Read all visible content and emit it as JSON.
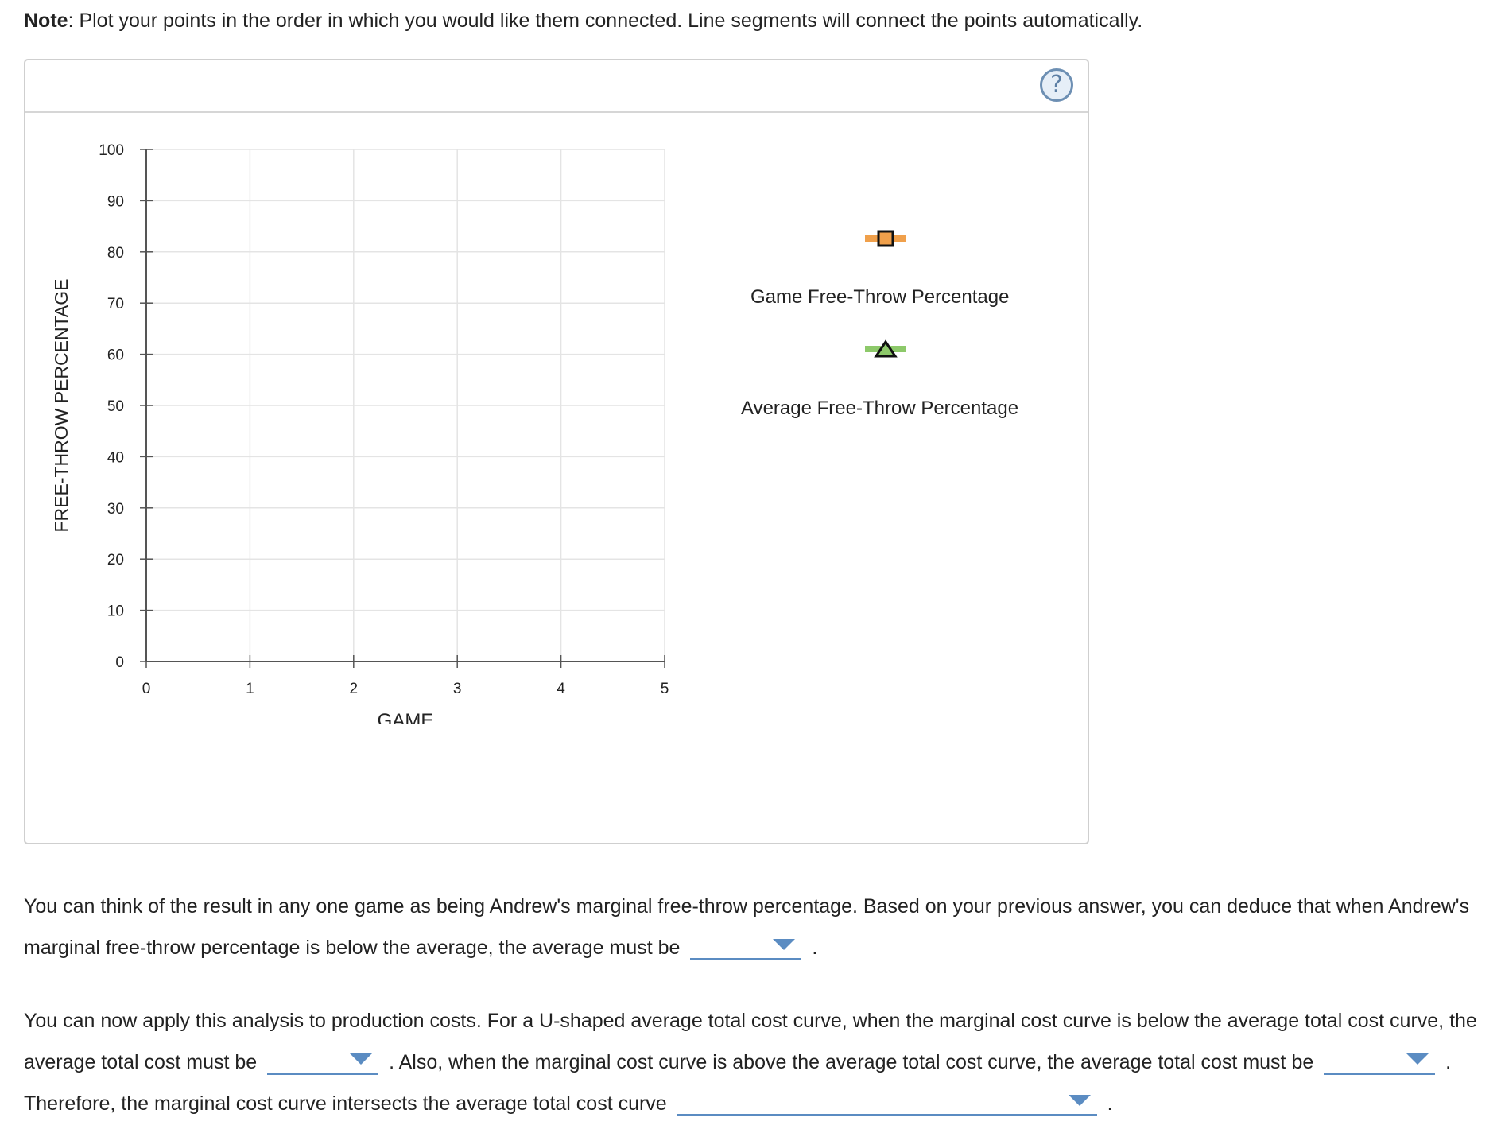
{
  "note": {
    "label": "Note",
    "text": ": Plot your points in the order in which you would like them connected. Line segments will connect the points automatically."
  },
  "panel": {
    "help_glyph": "?"
  },
  "chart_data": {
    "type": "line",
    "xlabel": "GAME",
    "ylabel": "FREE-THROW PERCENTAGE",
    "xlim": [
      0,
      5
    ],
    "ylim": [
      0,
      100
    ],
    "x_ticks": [
      "0",
      "1",
      "2",
      "3",
      "4",
      "5"
    ],
    "y_ticks": [
      "0",
      "10",
      "20",
      "30",
      "40",
      "50",
      "60",
      "70",
      "80",
      "90",
      "100"
    ],
    "grid": true,
    "series": [
      {
        "name": "Game Free-Throw Percentage",
        "marker": "square",
        "color": "#f0a04b",
        "x": [],
        "y": []
      },
      {
        "name": "Average Free-Throw Percentage",
        "marker": "triangle",
        "color": "#8dc96a",
        "x": [],
        "y": []
      }
    ],
    "legend_position": "right"
  },
  "paragraphs": {
    "p1": {
      "t1": "You can think of the result in any one game as being Andrew's marginal free-throw percentage. Based on your previous answer, you can deduce that when Andrew's marginal free-throw percentage is below the average, the average must be",
      "dd1": "",
      "t2": "."
    },
    "p2": {
      "t1": "You can now apply this analysis to production costs. For a U-shaped average total cost curve, when the marginal cost curve is below the average total cost curve, the average total cost must be",
      "dd1": "",
      "t2": ". Also, when the marginal cost curve is above the average total cost curve, the average total cost must be",
      "dd2": "",
      "t3": ". Therefore, the marginal cost curve intersects the average total cost curve",
      "dd3": "",
      "t4": "."
    }
  }
}
